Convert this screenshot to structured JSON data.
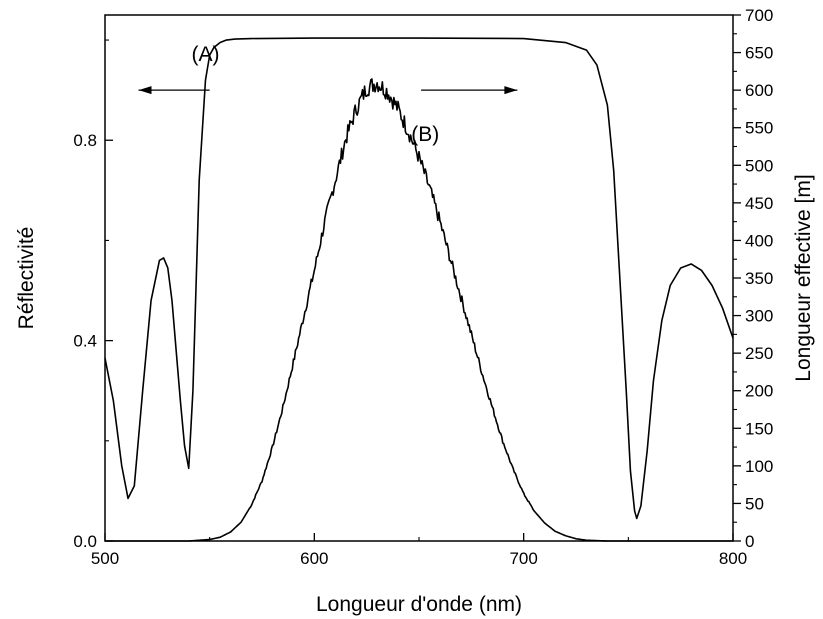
{
  "chart_data": {
    "type": "line",
    "title": "",
    "xlabel": "Longueur d'onde (nm)",
    "ylabel_left": "Réflectivité",
    "ylabel_right": "Longueur effective [m]",
    "xlim": [
      500,
      800
    ],
    "ylim_left": [
      0.0,
      1.05
    ],
    "ylim_right": [
      0,
      700
    ],
    "x_ticks": [
      500,
      600,
      700,
      800
    ],
    "x_tick_labels": [
      "500",
      "600",
      "700",
      "800"
    ],
    "y_left_ticks": [
      0.0,
      0.4,
      0.8
    ],
    "y_left_tick_labels": [
      "0.0",
      "0.4",
      "0.8"
    ],
    "y_right_ticks": [
      0,
      50,
      100,
      150,
      200,
      250,
      300,
      350,
      400,
      450,
      500,
      550,
      600,
      650,
      700
    ],
    "y_right_tick_labels": [
      "0",
      "50",
      "100",
      "150",
      "200",
      "250",
      "300",
      "350",
      "400",
      "450",
      "500",
      "550",
      "600",
      "650",
      "700"
    ],
    "grid": false,
    "legend": "none",
    "annotations": [
      {
        "text": "(A)",
        "x": 548,
        "y_right": 639,
        "arrow_to_x": 516,
        "arrow_from_x": 550,
        "arrow_y_right": 600,
        "arrow_axis": "left"
      },
      {
        "text": "(B)",
        "x": 653,
        "y_right": 532,
        "arrow_to_x": 697,
        "arrow_from_x": 651,
        "arrow_y_right": 600,
        "arrow_axis": "right"
      }
    ],
    "series": [
      {
        "label": "(A)",
        "axis": "left",
        "x": [
          500,
          504,
          508,
          511,
          514,
          518,
          522,
          526,
          528,
          530,
          532,
          534,
          536,
          538,
          540,
          542,
          545,
          548,
          550,
          552,
          555,
          558,
          562,
          570,
          600,
          650,
          700,
          720,
          730,
          735,
          740,
          743,
          746,
          749,
          751,
          753,
          754,
          756,
          759,
          762,
          766,
          770,
          775,
          780,
          785,
          790,
          795,
          800
        ],
        "y": [
          0.365,
          0.28,
          0.15,
          0.085,
          0.11,
          0.3,
          0.48,
          0.56,
          0.565,
          0.545,
          0.48,
          0.38,
          0.28,
          0.19,
          0.145,
          0.3,
          0.72,
          0.92,
          0.97,
          0.985,
          0.995,
          1.0,
          1.002,
          1.003,
          1.004,
          1.004,
          1.003,
          0.995,
          0.98,
          0.95,
          0.87,
          0.74,
          0.52,
          0.3,
          0.14,
          0.06,
          0.045,
          0.07,
          0.18,
          0.32,
          0.44,
          0.51,
          0.545,
          0.553,
          0.54,
          0.51,
          0.465,
          0.405
        ]
      },
      {
        "label": "(B)",
        "axis": "right",
        "x": [
          500,
          540,
          545,
          550,
          555,
          560,
          565,
          570,
          575,
          580,
          585,
          590,
          595,
          600,
          605,
          610,
          615,
          620,
          625,
          630,
          635,
          640,
          645,
          650,
          655,
          660,
          665,
          670,
          675,
          680,
          685,
          690,
          695,
          700,
          705,
          710,
          715,
          720,
          725,
          730,
          735,
          740,
          745,
          750,
          800
        ],
        "y": [
          0,
          0,
          1,
          2,
          5,
          12,
          25,
          48,
          80,
          125,
          178,
          238,
          300,
          360,
          425,
          480,
          535,
          575,
          603,
          610,
          598,
          575,
          545,
          510,
          470,
          425,
          375,
          325,
          275,
          225,
          178,
          133,
          95,
          63,
          40,
          24,
          13,
          7,
          3,
          1,
          0.5,
          0,
          0,
          0,
          0
        ]
      }
    ]
  }
}
